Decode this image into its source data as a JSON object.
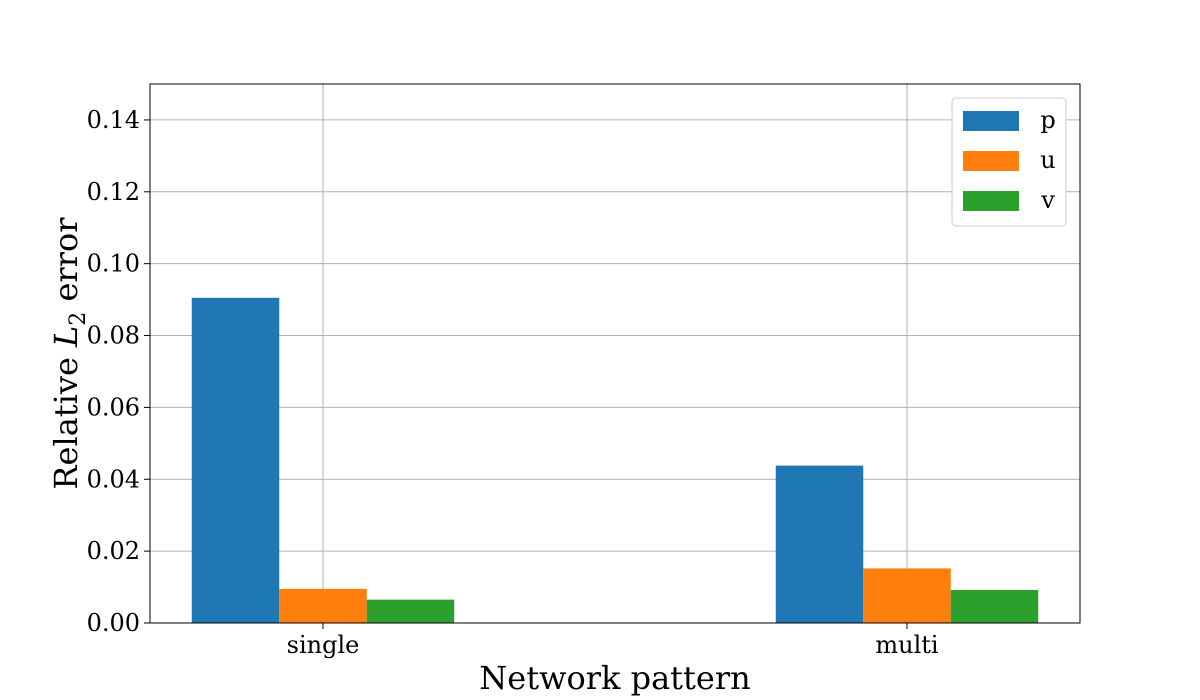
{
  "chart_data": {
    "type": "bar",
    "categories": [
      "single",
      "multi"
    ],
    "series": [
      {
        "name": "p",
        "values": [
          0.0905,
          0.0438
        ],
        "color": "#1f77b4"
      },
      {
        "name": "u",
        "values": [
          0.0095,
          0.0152
        ],
        "color": "#ff7f0e"
      },
      {
        "name": "v",
        "values": [
          0.0065,
          0.0092
        ],
        "color": "#2ca02c"
      }
    ],
    "title": "",
    "xlabel": "Network pattern",
    "ylabel": {
      "prefix": "Relative ",
      "symbol": "L",
      "subscript": "2",
      "suffix": " error"
    },
    "ylim": [
      0,
      0.15
    ],
    "yticks": [
      "0.00",
      "0.02",
      "0.04",
      "0.06",
      "0.08",
      "0.10",
      "0.12",
      "0.14"
    ],
    "grid": true,
    "legend_position": "top-right"
  }
}
